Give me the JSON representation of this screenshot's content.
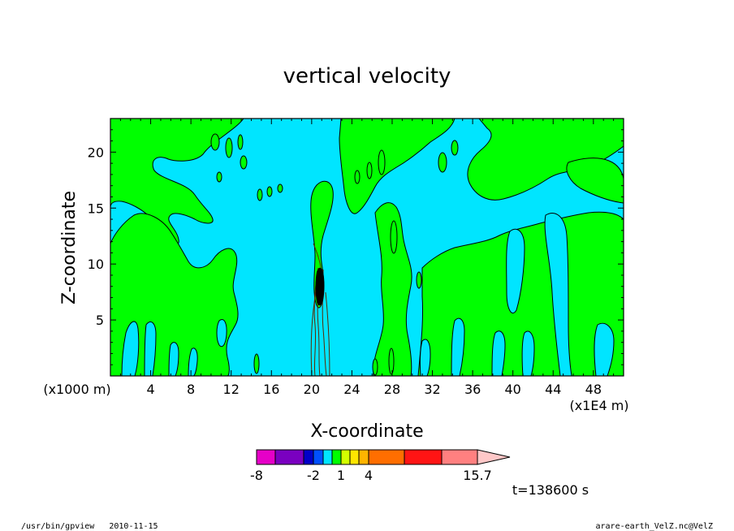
{
  "chart_data": {
    "type": "heatmap",
    "title": "vertical velocity",
    "xlabel": "X-coordinate",
    "ylabel": "Z-coordinate",
    "x_unit_left": "(x1000 m)",
    "x_unit_right": "(x1E4 m)",
    "xlim": [
      0,
      51
    ],
    "ylim": [
      0,
      23
    ],
    "x_ticks": [
      "4",
      "8",
      "12",
      "16",
      "20",
      "24",
      "28",
      "32",
      "36",
      "40",
      "44",
      "48"
    ],
    "x_tick_values": [
      4,
      8,
      12,
      16,
      20,
      24,
      28,
      32,
      36,
      40,
      44,
      48
    ],
    "y_ticks": [
      "5",
      "10",
      "15",
      "20"
    ],
    "y_tick_values": [
      5,
      10,
      15,
      20
    ],
    "region_colors": {
      "positive": "#00ff00",
      "negative": "#00e5ff"
    },
    "colorbar": {
      "colors": [
        "#e600c8",
        "#7a00c0",
        "#0000c8",
        "#0050ff",
        "#00e5ff",
        "#00ff00",
        "#d4ff00",
        "#ffe600",
        "#ffb400",
        "#ff6e00",
        "#ff1414",
        "#ff8080",
        "#ffc8c8"
      ],
      "labels": [
        "-8",
        "-2",
        "1",
        "4",
        "15.7"
      ],
      "label_values": [
        -8,
        -2,
        1,
        4,
        15.7
      ]
    },
    "annotation": "t=138600 s"
  },
  "footer": {
    "left": "/usr/bin/gpview   2010-11-15",
    "right": "arare-earth_VelZ.nc@VelZ"
  }
}
